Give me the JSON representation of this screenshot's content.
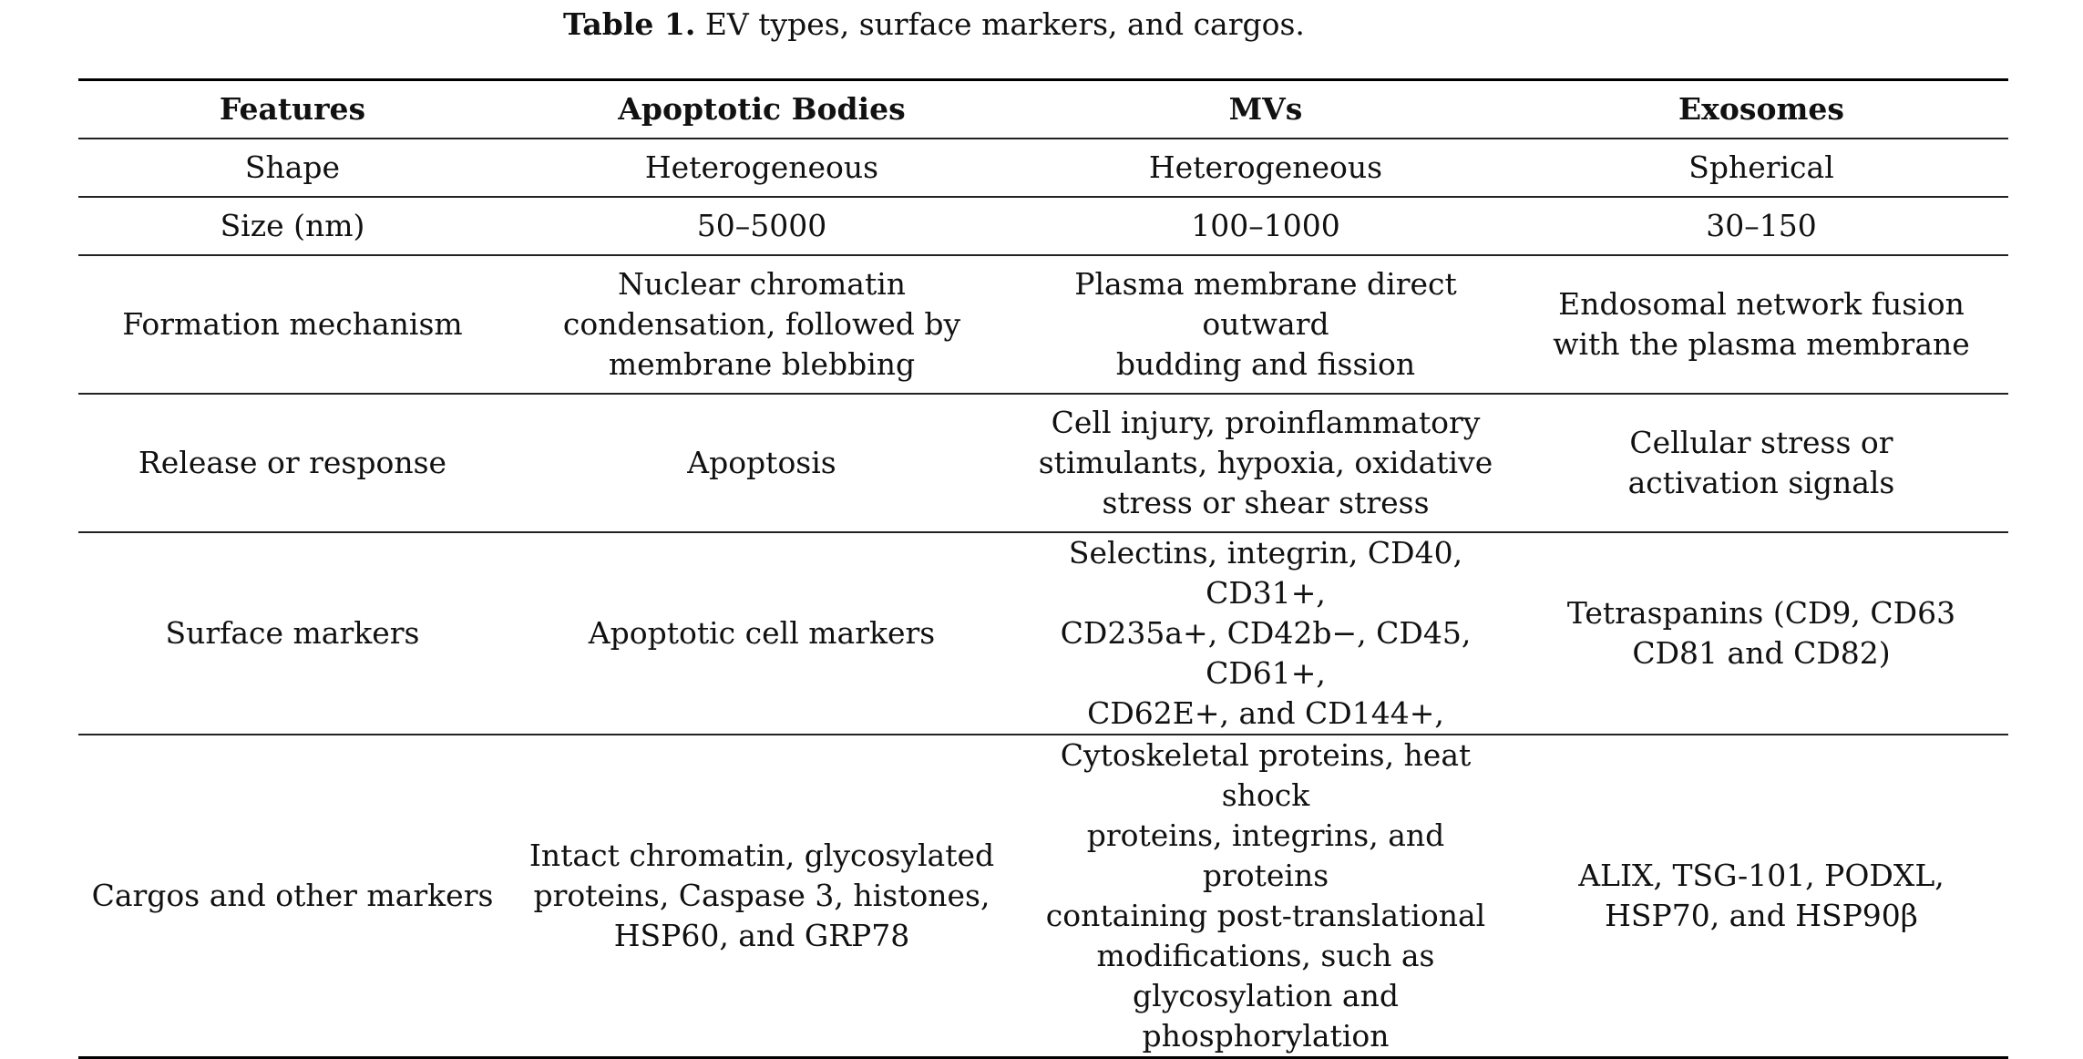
{
  "caption": {
    "label": "Table 1.",
    "text": "EV types, surface markers, and cargos."
  },
  "table": {
    "headers": [
      "Features",
      "Apoptotic Bodies",
      "MVs",
      "Exosomes"
    ],
    "rows": [
      [
        "Shape",
        "Heterogeneous",
        "Heterogeneous",
        "Spherical"
      ],
      [
        "Size (nm)",
        "50–5000",
        "100–1000",
        "30–150"
      ],
      [
        "Formation mechanism",
        [
          "Nuclear chromatin",
          "condensation, followed by",
          "membrane blebbing"
        ],
        [
          "Plasma membrane direct outward",
          "budding and fission"
        ],
        [
          "Endosomal network fusion",
          "with the plasma membrane"
        ]
      ],
      [
        "Release or response",
        "Apoptosis",
        [
          "Cell injury, proinflammatory",
          "stimulants, hypoxia, oxidative",
          "stress or shear stress"
        ],
        [
          "Cellular stress or",
          "activation signals"
        ]
      ],
      [
        "Surface markers",
        "Apoptotic cell markers",
        [
          "Selectins, integrin, CD40, CD31+,",
          "CD235a+, CD42b−, CD45, CD61+,",
          "CD62E+, and CD144+,"
        ],
        [
          "Tetraspanins (CD9, CD63",
          "CD81 and CD82)"
        ]
      ],
      [
        "Cargos and other markers",
        [
          "Intact chromatin, glycosylated",
          "proteins, Caspase 3, histones,",
          "HSP60, and GRP78"
        ],
        [
          "Cytoskeletal proteins, heat shock",
          "proteins, integrins, and proteins",
          "containing post-translational",
          "modifications, such as",
          "glycosylation and",
          "phosphorylation"
        ],
        [
          "ALIX, TSG-101, PODXL,",
          "HSP70, and HSP90β"
        ]
      ]
    ]
  }
}
